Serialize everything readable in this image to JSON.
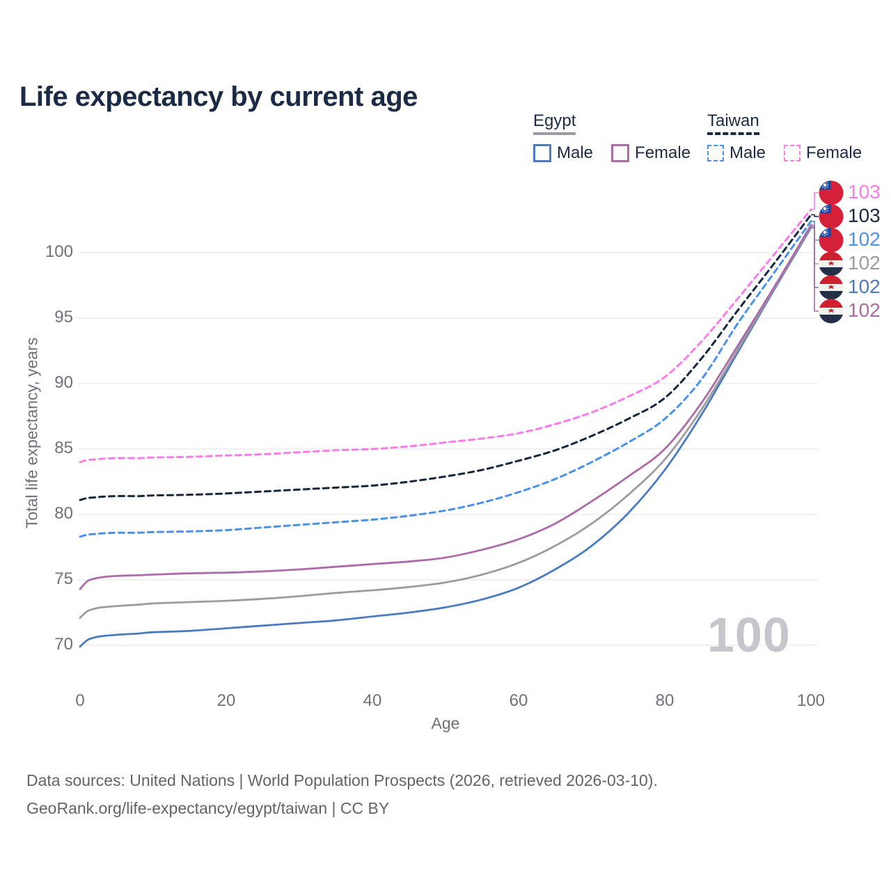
{
  "title": "Life expectancy by current age",
  "legend": {
    "groups": [
      {
        "label": "Egypt",
        "line_style": "solid",
        "underline_color": "#9b9ba1",
        "items": [
          {
            "label": "Male",
            "color": "#4a7ac1",
            "dashed": false
          },
          {
            "label": "Female",
            "color": "#ac6ba6",
            "dashed": false
          }
        ]
      },
      {
        "label": "Taiwan",
        "line_style": "dashed",
        "underline_color": "#1a2940",
        "items": [
          {
            "label": "Male",
            "color": "#4a91ea",
            "dashed": true
          },
          {
            "label": "Female",
            "color": "#fb7ce9",
            "dashed": true
          }
        ]
      }
    ]
  },
  "axes": {
    "x": {
      "title": "Age",
      "ticks": [
        0,
        20,
        40,
        60,
        80,
        100
      ],
      "range": [
        0,
        100
      ]
    },
    "y": {
      "title": "Total life expectancy, years",
      "ticks": [
        70,
        75,
        80,
        85,
        90,
        95,
        100
      ],
      "range": [
        70,
        103.5
      ],
      "grid": true
    }
  },
  "watermark": "100",
  "footer": {
    "line1": "Data sources: United Nations | World Population Prospects (2026, retrieved 2026-03-10).",
    "line2": "GeoRank.org/life-expectancy/egypt/taiwan | CC BY"
  },
  "end_labels": [
    {
      "series": "taiwan-female",
      "flag": "taiwan",
      "value": "103",
      "color": "#fb7ce9"
    },
    {
      "series": "taiwan-both",
      "flag": "taiwan",
      "value": "103",
      "color": "#1a2940"
    },
    {
      "series": "taiwan-male",
      "flag": "taiwan",
      "value": "102",
      "color": "#4a91ea"
    },
    {
      "series": "egypt-both",
      "flag": "egypt",
      "value": "102",
      "color": "#9b9ba1"
    },
    {
      "series": "egypt-male",
      "flag": "egypt",
      "value": "102",
      "color": "#4a7ac1"
    },
    {
      "series": "egypt-female",
      "flag": "egypt",
      "value": "102",
      "color": "#ac6ba6"
    }
  ],
  "chart_data": {
    "type": "line",
    "title": "Life expectancy by current age",
    "xlabel": "Age",
    "ylabel": "Total life expectancy, years",
    "xlim": [
      0,
      100
    ],
    "ylim": [
      70,
      103.5
    ],
    "grid": "horizontal",
    "legend_position": "top-right",
    "ages": [
      0,
      1,
      2,
      3,
      5,
      8,
      10,
      15,
      20,
      25,
      30,
      35,
      40,
      45,
      50,
      55,
      60,
      65,
      70,
      75,
      80,
      85,
      90,
      95,
      100
    ],
    "series": [
      {
        "id": "egypt-male",
        "name": "Egypt Male",
        "color": "#4a7ac1",
        "dashed": false,
        "values": [
          69.9,
          70.4,
          70.6,
          70.7,
          70.8,
          70.9,
          71.0,
          71.1,
          71.3,
          71.5,
          71.7,
          71.9,
          72.2,
          72.5,
          72.9,
          73.5,
          74.4,
          75.8,
          77.6,
          80.1,
          83.4,
          87.6,
          92.4,
          97.2,
          101.9
        ]
      },
      {
        "id": "egypt-both",
        "name": "Egypt Both sexes",
        "color": "#9b9ba1",
        "dashed": false,
        "values": [
          72.1,
          72.6,
          72.8,
          72.9,
          73.0,
          73.1,
          73.2,
          73.3,
          73.4,
          73.55,
          73.75,
          74.0,
          74.2,
          74.45,
          74.8,
          75.4,
          76.3,
          77.6,
          79.3,
          81.5,
          84.2,
          88.0,
          92.6,
          97.3,
          102.0
        ]
      },
      {
        "id": "egypt-female",
        "name": "Egypt Female",
        "color": "#ac6ba6",
        "dashed": false,
        "values": [
          74.3,
          74.9,
          75.1,
          75.2,
          75.3,
          75.35,
          75.4,
          75.5,
          75.55,
          75.65,
          75.8,
          76.0,
          76.2,
          76.4,
          76.7,
          77.3,
          78.1,
          79.3,
          81.0,
          82.9,
          85.0,
          88.5,
          92.9,
          97.4,
          102.1
        ]
      },
      {
        "id": "taiwan-male",
        "name": "Taiwan Male",
        "color": "#4a91ea",
        "dashed": true,
        "values": [
          78.3,
          78.45,
          78.5,
          78.55,
          78.6,
          78.6,
          78.65,
          78.7,
          78.8,
          79.0,
          79.2,
          79.4,
          79.6,
          79.9,
          80.3,
          80.9,
          81.7,
          82.7,
          84.0,
          85.5,
          87.3,
          90.3,
          94.6,
          98.5,
          102.4
        ]
      },
      {
        "id": "taiwan-both",
        "name": "Taiwan Both sexes",
        "color": "#15263f",
        "dashed": true,
        "values": [
          81.1,
          81.25,
          81.3,
          81.35,
          81.4,
          81.4,
          81.45,
          81.5,
          81.6,
          81.75,
          81.9,
          82.05,
          82.2,
          82.5,
          82.9,
          83.4,
          84.1,
          84.9,
          86.0,
          87.3,
          88.9,
          91.9,
          95.6,
          99.2,
          102.9
        ]
      },
      {
        "id": "taiwan-female",
        "name": "Taiwan Female",
        "color": "#fb7ce9",
        "dashed": true,
        "values": [
          84.0,
          84.15,
          84.2,
          84.25,
          84.3,
          84.3,
          84.35,
          84.4,
          84.5,
          84.6,
          84.75,
          84.9,
          85.0,
          85.2,
          85.5,
          85.8,
          86.2,
          86.9,
          87.8,
          89.0,
          90.5,
          93.2,
          96.5,
          99.9,
          103.3
        ]
      }
    ]
  }
}
